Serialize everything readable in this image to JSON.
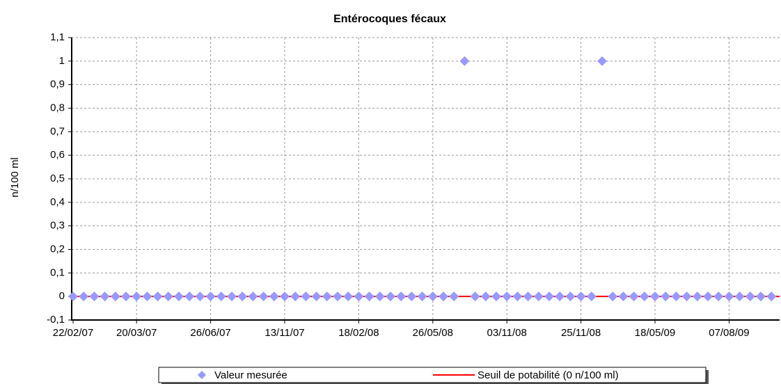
{
  "chart_data": {
    "type": "scatter",
    "title": "Entérocoques fécaux",
    "y_label": "n/100 ml",
    "categories": [
      "22/02/07",
      null,
      null,
      null,
      null,
      null,
      "20/03/07",
      null,
      null,
      null,
      null,
      null,
      null,
      "26/06/07",
      null,
      null,
      null,
      null,
      null,
      null,
      "13/11/07",
      null,
      null,
      null,
      null,
      null,
      null,
      "18/02/08",
      null,
      null,
      null,
      null,
      null,
      null,
      "26/05/08",
      null,
      null,
      null,
      null,
      null,
      null,
      "03/11/08",
      null,
      null,
      null,
      null,
      null,
      null,
      "25/11/08",
      null,
      null,
      null,
      null,
      null,
      null,
      "18/05/09",
      null,
      null,
      null,
      null,
      null,
      null,
      "07/08/09",
      null,
      null,
      null,
      null
    ],
    "series": [
      {
        "name": "Valeur mesurée",
        "color": "#9999ff",
        "values": [
          0,
          0,
          0,
          0,
          0,
          0,
          0,
          0,
          0,
          0,
          0,
          0,
          0,
          0,
          0,
          0,
          0,
          0,
          0,
          0,
          0,
          0,
          0,
          0,
          0,
          0,
          0,
          0,
          0,
          0,
          0,
          0,
          0,
          0,
          0,
          0,
          0,
          1,
          0,
          0,
          0,
          0,
          0,
          0,
          0,
          0,
          0,
          0,
          0,
          0,
          1,
          0,
          0,
          0,
          0,
          0,
          0,
          0,
          0,
          0,
          0,
          0,
          0,
          0,
          0,
          0,
          0
        ]
      }
    ],
    "threshold": {
      "name": "Seuil de potabilité (0 n/100 ml)",
      "color": "#ff0000",
      "value": 0
    },
    "ylim": [
      -0.1,
      1.1
    ],
    "yticks": [
      {
        "value": -0.1,
        "label": "-0,1"
      },
      0,
      {
        "value": 0.1,
        "label": "0,1"
      },
      {
        "value": 0.2,
        "label": "0,2"
      },
      {
        "value": 0.3,
        "label": "0,3"
      },
      {
        "value": 0.4,
        "label": "0,4"
      },
      {
        "value": 0.5,
        "label": "0,5"
      },
      {
        "value": 0.6,
        "label": "0,6"
      },
      {
        "value": 0.7,
        "label": "0,7"
      },
      {
        "value": 0.8,
        "label": "0,8"
      },
      {
        "value": 0.9,
        "label": "0,9"
      },
      1,
      {
        "value": 1.1,
        "label": "1,1"
      }
    ],
    "grid": true
  }
}
